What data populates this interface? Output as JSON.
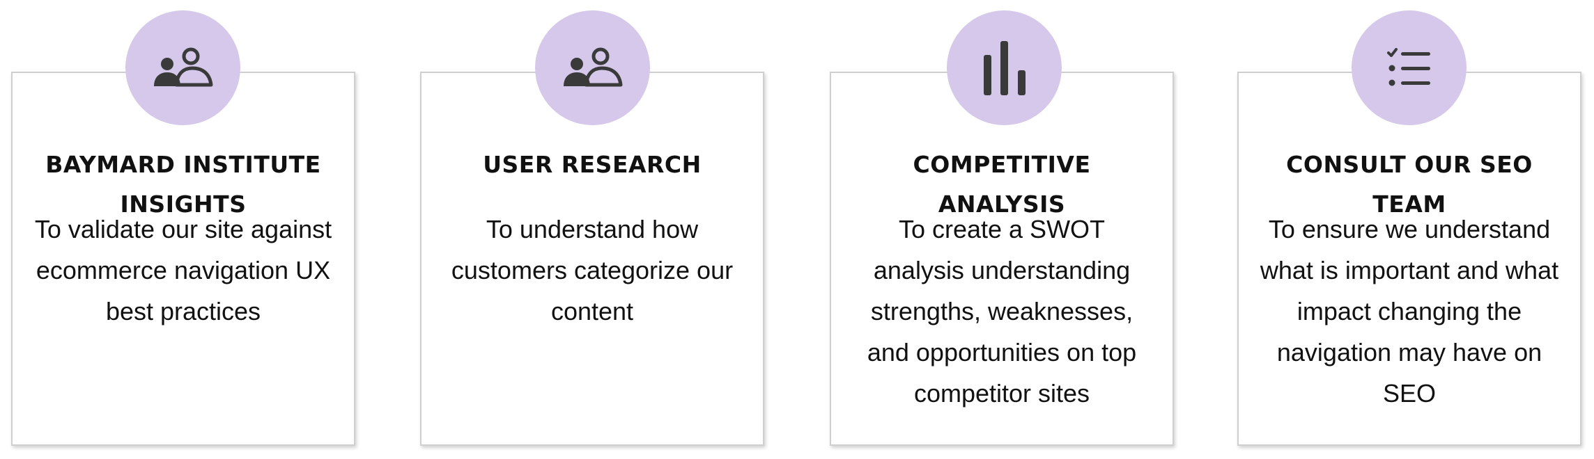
{
  "colors": {
    "icon_circle": "#d5c8ea",
    "icon_glyph": "#3a3a3a",
    "card_border": "#cfcfcf",
    "text": "#111111"
  },
  "cards": [
    {
      "icon": "users-icon",
      "title": "BAYMARD INSTITUTE INSIGHTS",
      "description": "To validate our site against ecommerce navigation UX best practices"
    },
    {
      "icon": "users-icon",
      "title": "USER RESEARCH",
      "description": "To understand how customers categorize our content"
    },
    {
      "icon": "bar-chart-icon",
      "title": "COMPETITIVE ANALYSIS",
      "description": "To create a SWOT analysis understanding strengths, weaknesses, and opportunities on top competitor sites"
    },
    {
      "icon": "checklist-icon",
      "title": "CONSULT OUR SEO TEAM",
      "description": "To ensure we understand what is important and what impact changing the navigation may have on SEO"
    }
  ]
}
